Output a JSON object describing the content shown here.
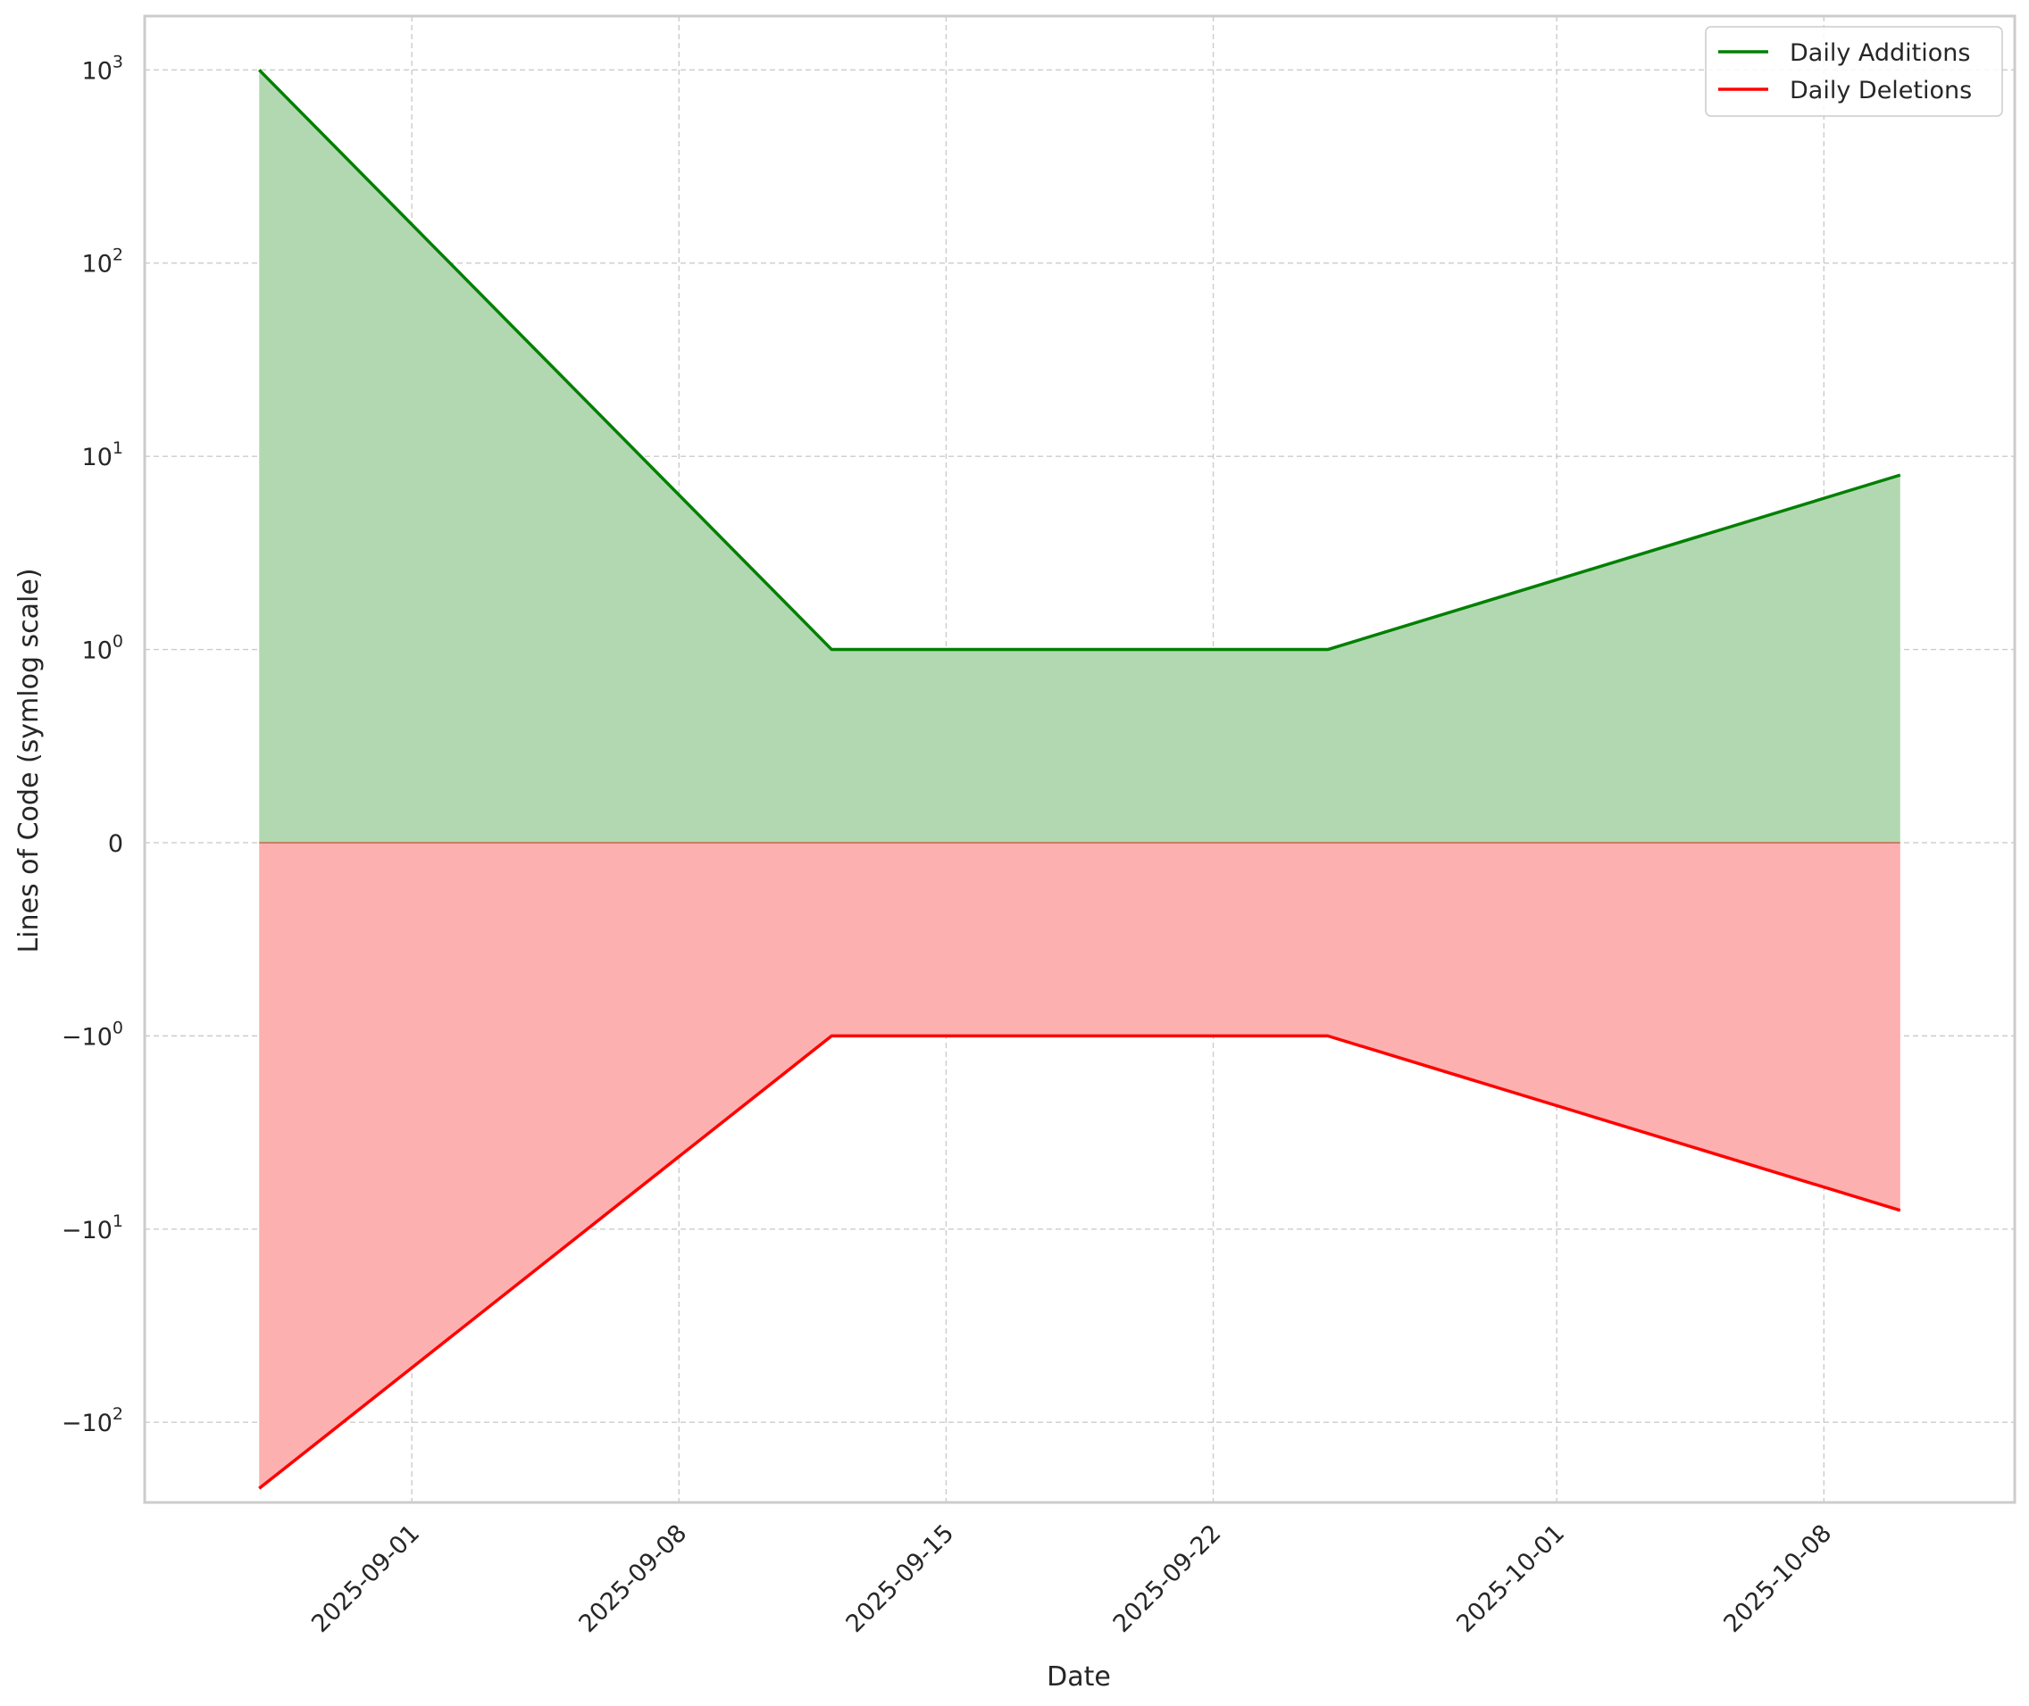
{
  "chart_data": {
    "type": "area",
    "xlabel": "Date",
    "ylabel": "Lines of Code (symlog scale)",
    "yscale": "symlog",
    "linthresh": 1,
    "grid": true,
    "legend_position": "top-right",
    "x_ticks": [
      "2025-09-01",
      "2025-09-08",
      "2025-09-15",
      "2025-09-22",
      "2025-10-01",
      "2025-10-08"
    ],
    "y_ticks": [
      {
        "value": 1000,
        "base": "10",
        "exp": "3"
      },
      {
        "value": 100,
        "base": "10",
        "exp": "2"
      },
      {
        "value": 10,
        "base": "10",
        "exp": "1"
      },
      {
        "value": 1,
        "base": "10",
        "exp": "0"
      },
      {
        "value": 0,
        "base": "0",
        "exp": ""
      },
      {
        "value": -1,
        "base": "−10",
        "exp": "0"
      },
      {
        "value": -10,
        "base": "−10",
        "exp": "1"
      },
      {
        "value": -100,
        "base": "−10",
        "exp": "2"
      }
    ],
    "xlim": [
      "2025-08-25",
      "2025-10-13"
    ],
    "ylim": [
      -260,
      1900
    ],
    "series": [
      {
        "name": "Daily Additions",
        "color": "#008000",
        "fill": "#b2d8b2",
        "x": [
          "2025-08-28",
          "2025-09-12",
          "2025-09-25",
          "2025-10-10"
        ],
        "values": [
          1000,
          1,
          1,
          8
        ]
      },
      {
        "name": "Daily Deletions",
        "color": "#ff0000",
        "fill": "#fdb0b0",
        "x": [
          "2025-08-28",
          "2025-09-12",
          "2025-09-25",
          "2025-10-10"
        ],
        "values": [
          -220,
          -1,
          -1,
          -8
        ]
      }
    ]
  }
}
